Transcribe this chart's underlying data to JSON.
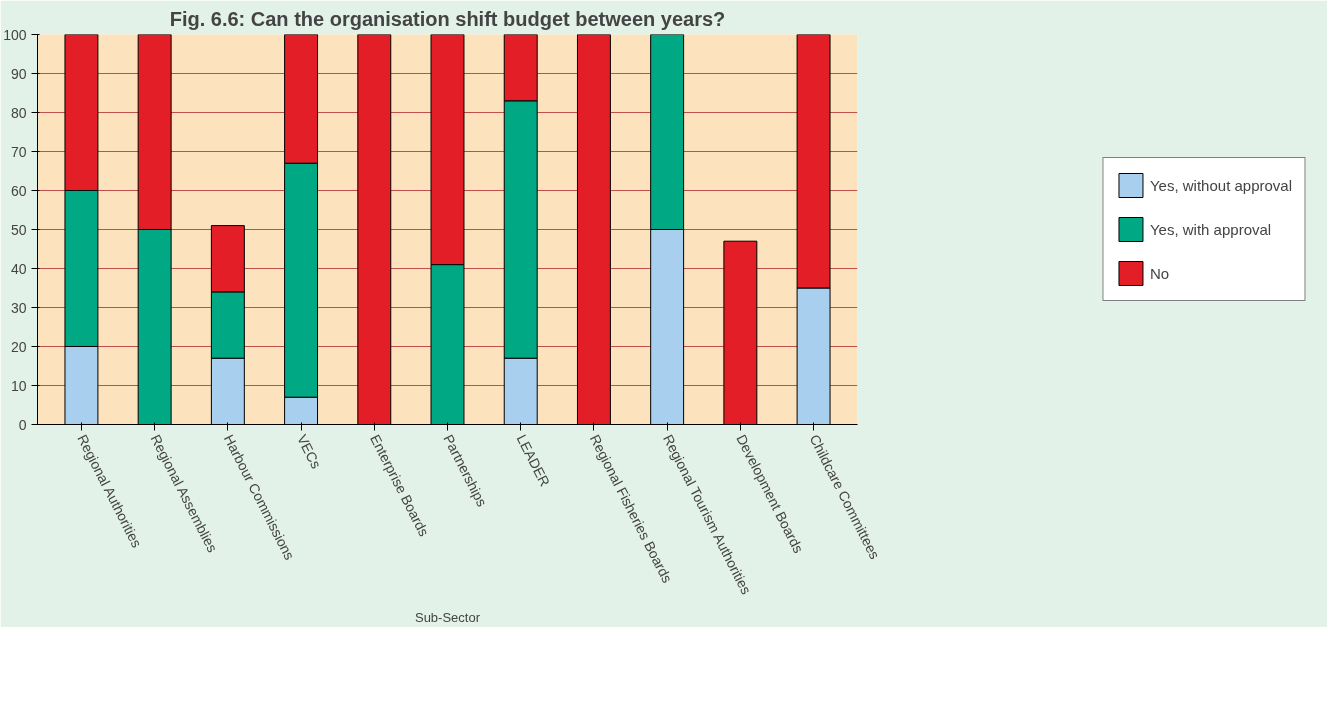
{
  "chart_data": {
    "type": "bar",
    "stacked": true,
    "title": "Fig. 6.6: Can the organisation shift budget between years?",
    "xlabel": "Sub-Sector",
    "categories": [
      "Regional Authorities",
      "Regional Assemblies",
      "Harbour Commissions",
      "VECs",
      "Enterprise Boards",
      "Partnerships",
      "LEADER",
      "Regional Fisheries Boards",
      "Regional Tourism Authorities",
      "Development Boards",
      "Childcare Committees"
    ],
    "series": [
      {
        "name": "Yes, without approval",
        "color": "#a8cfee",
        "values": [
          20,
          0,
          17,
          7,
          0,
          0,
          17,
          0,
          50,
          0,
          35
        ]
      },
      {
        "name": "Yes, with approval",
        "color": "#00a884",
        "values": [
          40,
          50,
          17,
          60,
          0,
          41,
          66,
          0,
          50,
          0,
          0
        ]
      },
      {
        "name": "No",
        "color": "#e41e26",
        "values": [
          40,
          50,
          17,
          33,
          100,
          59,
          17,
          100,
          0,
          47,
          65
        ]
      }
    ],
    "ylim": [
      0,
      100
    ],
    "yticks": [
      0,
      10,
      20,
      30,
      40,
      50,
      60,
      70,
      80,
      90,
      100
    ],
    "grid": "y",
    "legend": "right"
  }
}
